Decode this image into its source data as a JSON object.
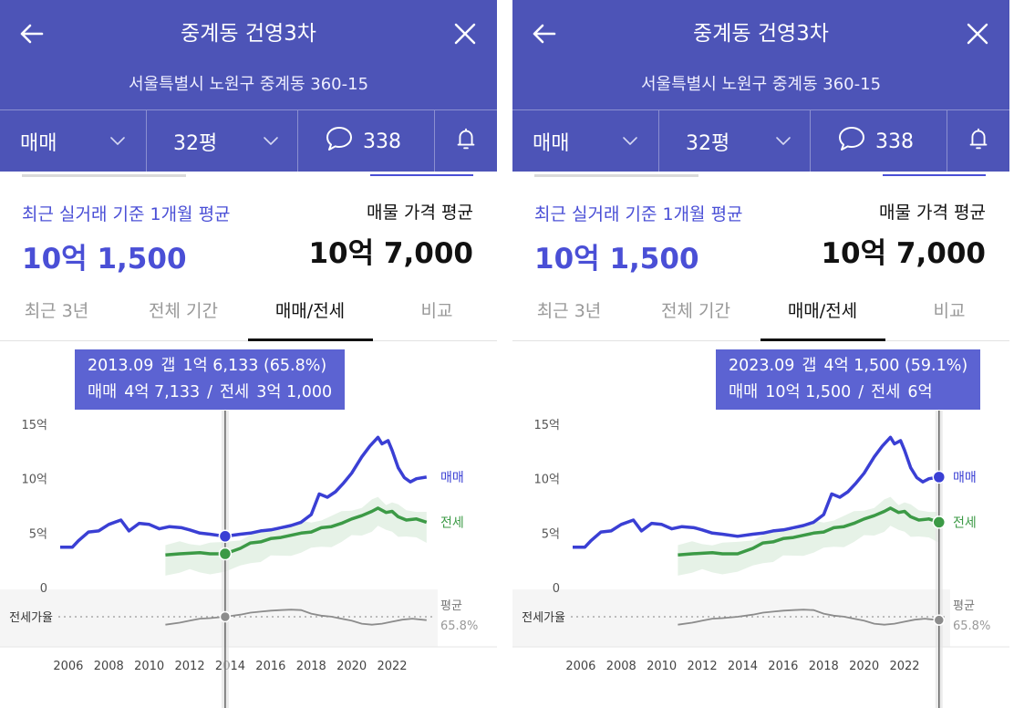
{
  "header": {
    "title": "중계동 건영3차",
    "address": "서울특별시 노원구 중계동 360-15",
    "deal_type": "매매",
    "size": "32평",
    "comment_count": "338",
    "bg_color": "#4d54b7"
  },
  "summary": {
    "recent_label": "최근 실거래 기준 1개월 평균",
    "recent_price": "10억 1,500",
    "listing_label": "매물 가격 평균",
    "listing_price": "10억 7,000"
  },
  "tabs": [
    "최근 3년",
    "전체 기간",
    "매매/전세",
    "비교"
  ],
  "active_tab": "매매/전세",
  "legend": {
    "sale": "매매",
    "jeonse": "전세",
    "ratio_label": "전세가율",
    "avg_label": "평균",
    "avg_value": "65.8%"
  },
  "colors": {
    "sale": "#3a3fd4",
    "jeonse": "#3c9a46",
    "ratio": "#8c8c8c",
    "accent": "#4a4fd6",
    "tooltip": "#5c63d2"
  },
  "panels": [
    {
      "tooltip": {
        "date": "2013.09",
        "gap_label": "갭",
        "gap": "1억 6,133 (65.8%)",
        "sale_label": "매매",
        "sale": "4억 7,133",
        "jeonse_label": "전세",
        "jeonse": "3억 1,000"
      },
      "cursor_year": 2013.75
    },
    {
      "tooltip": {
        "date": "2023.09",
        "gap_label": "갭",
        "gap": "4억 1,500 (59.1%)",
        "sale_label": "매매",
        "sale": "10억 1,500",
        "jeonse_label": "전세",
        "jeonse": "6억"
      },
      "cursor_year": 2023.7
    }
  ],
  "chart_data": {
    "type": "line",
    "x_unit": "year",
    "y_unit": "억",
    "ylim": [
      0,
      15
    ],
    "y_ticks": [
      "15억",
      "10억",
      "5억",
      "0"
    ],
    "x_ticks": [
      "2006",
      "2008",
      "2010",
      "2012",
      "2014",
      "2016",
      "2018",
      "2020",
      "2022"
    ],
    "xlim": [
      2005.6,
      2023.8
    ],
    "series": [
      {
        "name": "매매",
        "points": [
          [
            2005.6,
            3.7
          ],
          [
            2006.2,
            3.7
          ],
          [
            2006.5,
            4.3
          ],
          [
            2007.0,
            5.1
          ],
          [
            2007.5,
            5.2
          ],
          [
            2008.0,
            5.8
          ],
          [
            2008.6,
            6.2
          ],
          [
            2009.0,
            5.2
          ],
          [
            2009.5,
            5.9
          ],
          [
            2010.0,
            5.8
          ],
          [
            2010.5,
            5.4
          ],
          [
            2011.0,
            5.6
          ],
          [
            2011.6,
            5.5
          ],
          [
            2012.0,
            5.3
          ],
          [
            2012.5,
            5.0
          ],
          [
            2013.0,
            4.9
          ],
          [
            2013.75,
            4.71
          ],
          [
            2014.5,
            4.9
          ],
          [
            2015.0,
            5.0
          ],
          [
            2015.5,
            5.2
          ],
          [
            2016.0,
            5.3
          ],
          [
            2016.5,
            5.5
          ],
          [
            2017.0,
            5.7
          ],
          [
            2017.5,
            6.0
          ],
          [
            2018.0,
            6.7
          ],
          [
            2018.4,
            8.6
          ],
          [
            2018.8,
            8.3
          ],
          [
            2019.2,
            8.8
          ],
          [
            2019.6,
            9.6
          ],
          [
            2020.0,
            10.5
          ],
          [
            2020.5,
            12.0
          ],
          [
            2020.9,
            13.0
          ],
          [
            2021.3,
            13.8
          ],
          [
            2021.5,
            13.2
          ],
          [
            2021.8,
            13.5
          ],
          [
            2022.0,
            12.6
          ],
          [
            2022.3,
            11.0
          ],
          [
            2022.6,
            10.1
          ],
          [
            2022.9,
            9.7
          ],
          [
            2023.2,
            10.0
          ],
          [
            2023.7,
            10.15
          ]
        ]
      },
      {
        "name": "전세",
        "points": [
          [
            2010.8,
            3.0
          ],
          [
            2011.5,
            3.1
          ],
          [
            2012.0,
            3.15
          ],
          [
            2012.5,
            3.2
          ],
          [
            2013.0,
            3.1
          ],
          [
            2013.75,
            3.1
          ],
          [
            2014.5,
            3.6
          ],
          [
            2015.0,
            4.1
          ],
          [
            2015.5,
            4.2
          ],
          [
            2016.0,
            4.5
          ],
          [
            2016.5,
            4.6
          ],
          [
            2017.0,
            4.8
          ],
          [
            2017.5,
            5.0
          ],
          [
            2018.0,
            5.1
          ],
          [
            2018.5,
            5.5
          ],
          [
            2019.0,
            5.6
          ],
          [
            2019.5,
            5.9
          ],
          [
            2020.0,
            6.3
          ],
          [
            2020.5,
            6.6
          ],
          [
            2021.0,
            7.0
          ],
          [
            2021.3,
            7.3
          ],
          [
            2021.7,
            6.9
          ],
          [
            2022.0,
            7.0
          ],
          [
            2022.3,
            6.5
          ],
          [
            2022.7,
            6.2
          ],
          [
            2023.2,
            6.3
          ],
          [
            2023.7,
            6.0
          ]
        ]
      },
      {
        "name": "전세가율",
        "points": [
          [
            2010.8,
            50
          ],
          [
            2011.5,
            54
          ],
          [
            2012.0,
            58
          ],
          [
            2012.5,
            62
          ],
          [
            2013.0,
            63
          ],
          [
            2013.75,
            65.8
          ],
          [
            2014.5,
            70
          ],
          [
            2015.0,
            74
          ],
          [
            2015.5,
            76
          ],
          [
            2016.0,
            78
          ],
          [
            2016.5,
            79
          ],
          [
            2017.0,
            80
          ],
          [
            2017.5,
            79
          ],
          [
            2018.0,
            72
          ],
          [
            2018.5,
            68
          ],
          [
            2019.0,
            66
          ],
          [
            2019.5,
            62
          ],
          [
            2020.0,
            58
          ],
          [
            2020.5,
            52
          ],
          [
            2021.0,
            50
          ],
          [
            2021.5,
            52
          ],
          [
            2022.0,
            56
          ],
          [
            2022.5,
            60
          ],
          [
            2023.0,
            62
          ],
          [
            2023.7,
            59.1
          ]
        ]
      }
    ]
  }
}
